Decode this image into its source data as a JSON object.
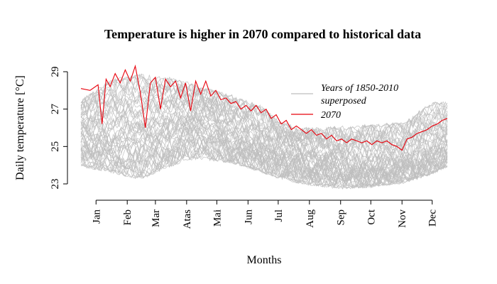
{
  "chart_data": {
    "type": "line",
    "title": "Temperature is higher in 2070 compared to historical data",
    "xlabel": "Months",
    "ylabel": "Daily temperature [°C]",
    "ylim": [
      23,
      29
    ],
    "yticks": [
      23,
      25,
      27,
      29
    ],
    "xlim": [
      1,
      365
    ],
    "month_ticks": [
      {
        "label": "Jan",
        "day": 16
      },
      {
        "label": "Feb",
        "day": 47
      },
      {
        "label": "Mar",
        "day": 75
      },
      {
        "label": "Atas",
        "day": 106
      },
      {
        "label": "Mai",
        "day": 136
      },
      {
        "label": "Jun",
        "day": 167
      },
      {
        "label": "Jul",
        "day": 197
      },
      {
        "label": "Aug",
        "day": 228
      },
      {
        "label": "Sep",
        "day": 259
      },
      {
        "label": "Oct",
        "day": 289
      },
      {
        "label": "Nov",
        "day": 320
      },
      {
        "label": "Dec",
        "day": 350
      }
    ],
    "legend": {
      "placement": "top-right",
      "entries": [
        {
          "label_lines": [
            "Years of 1850-2010",
            "superposed"
          ],
          "color": "#bebebe"
        },
        {
          "label_lines": [
            "2070"
          ],
          "color": "#e8000b"
        }
      ]
    },
    "series": [
      {
        "name": "Years of 1850-2010 superposed",
        "color": "#bebebe",
        "kind": "envelope",
        "x": [
          1,
          30,
          60,
          90,
          105,
          120,
          150,
          180,
          200,
          230,
          260,
          290,
          320,
          350,
          365
        ],
        "upper": [
          27.5,
          28.6,
          28.9,
          28.7,
          28.5,
          28.2,
          27.8,
          27.2,
          26.3,
          26.0,
          26.1,
          26.2,
          26.3,
          27.4,
          27.4
        ],
        "lower": [
          23.9,
          23.6,
          23.2,
          23.9,
          24.2,
          24.3,
          24.1,
          23.6,
          23.2,
          22.9,
          22.7,
          22.8,
          23.0,
          23.5,
          23.9
        ],
        "typical": [
          25.6,
          25.4,
          25.6,
          25.9,
          26.4,
          26.5,
          25.5,
          25.0,
          24.6,
          24.2,
          24.0,
          23.9,
          24.2,
          24.6,
          25.0
        ]
      },
      {
        "name": "2070",
        "color": "#e8000b",
        "x": [
          1,
          10,
          18,
          22,
          26,
          30,
          35,
          40,
          45,
          50,
          55,
          60,
          65,
          70,
          75,
          80,
          85,
          90,
          95,
          100,
          105,
          110,
          115,
          120,
          125,
          130,
          135,
          140,
          145,
          150,
          155,
          160,
          165,
          170,
          175,
          180,
          185,
          190,
          195,
          200,
          205,
          210,
          215,
          220,
          225,
          230,
          235,
          240,
          245,
          250,
          255,
          260,
          265,
          270,
          275,
          280,
          285,
          290,
          295,
          300,
          305,
          310,
          315,
          320,
          325,
          330,
          335,
          340,
          345,
          350,
          355,
          360,
          365
        ],
        "y": [
          28.1,
          28.0,
          28.3,
          26.2,
          28.6,
          28.2,
          28.9,
          28.4,
          29.1,
          28.5,
          29.3,
          27.9,
          26.0,
          28.4,
          28.7,
          27.0,
          28.6,
          28.2,
          28.5,
          27.6,
          28.4,
          26.9,
          28.5,
          27.8,
          28.5,
          27.7,
          28.0,
          27.5,
          27.6,
          27.3,
          27.4,
          27.0,
          27.2,
          26.9,
          27.2,
          26.8,
          27.0,
          26.5,
          26.7,
          26.2,
          26.4,
          25.9,
          26.1,
          25.9,
          25.7,
          25.9,
          25.6,
          25.7,
          25.4,
          25.6,
          25.3,
          25.4,
          25.2,
          25.4,
          25.3,
          25.2,
          25.3,
          25.1,
          25.3,
          25.2,
          25.3,
          25.1,
          25.0,
          24.8,
          25.4,
          25.5,
          25.7,
          25.8,
          25.9,
          26.1,
          26.2,
          26.4,
          26.5
        ]
      }
    ]
  }
}
